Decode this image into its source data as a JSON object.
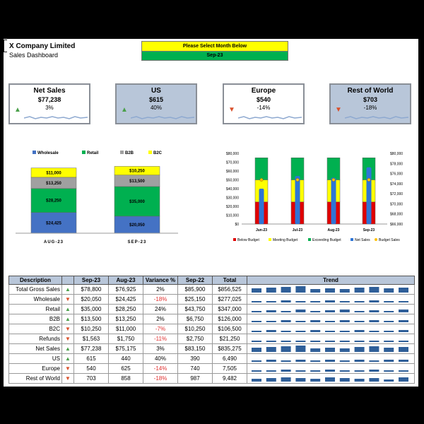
{
  "header": {
    "company": "X Company Limited",
    "subtitle": "Sales Dashboard",
    "month_prompt": "Please Select Month Below",
    "month_value": "Sep-23"
  },
  "kpis": [
    {
      "title": "Net Sales",
      "value": "$77,238",
      "pct": "3%",
      "trend": "up",
      "style": "white"
    },
    {
      "title": "US",
      "value": "$615",
      "pct": "40%",
      "trend": "up",
      "style": "blue"
    },
    {
      "title": "Europe",
      "value": "$540",
      "pct": "-14%",
      "trend": "down",
      "style": "white"
    },
    {
      "title": "Rest of World",
      "value": "$703",
      "pct": "-18%",
      "trend": "down",
      "style": "blue"
    }
  ],
  "chart_data": [
    {
      "type": "bar",
      "stacked": true,
      "categories": [
        "AUG-23",
        "SEP-23"
      ],
      "series": [
        {
          "name": "Wholesale",
          "color": "#4472c4",
          "values": [
            24425,
            20050
          ],
          "labels": [
            "$24,425",
            "$20,050"
          ]
        },
        {
          "name": "Retail",
          "color": "#00b050",
          "values": [
            28250,
            35000
          ],
          "labels": [
            "$28,250",
            "$35,000"
          ]
        },
        {
          "name": "B2B",
          "color": "#a0a0a0",
          "values": [
            13250,
            13500
          ],
          "labels": [
            "$13,250",
            "$13,500"
          ]
        },
        {
          "name": "B2C",
          "color": "#ffff00",
          "values": [
            11000,
            10250
          ],
          "labels": [
            "$11,000",
            "$10,250"
          ]
        }
      ],
      "legend_position": "top"
    },
    {
      "type": "bar",
      "categories": [
        "Jun-23",
        "Jul-23",
        "Aug-23",
        "Sep-23"
      ],
      "bands": [
        {
          "name": "Below Budget",
          "color": "#e00000",
          "values": [
            25000,
            25000,
            25000,
            25000
          ]
        },
        {
          "name": "Meeting Budget",
          "color": "#ffff00",
          "values": [
            25000,
            25000,
            25000,
            25000
          ]
        },
        {
          "name": "Exceeding Budget",
          "color": "#00b050",
          "values": [
            25000,
            25000,
            25000,
            25000
          ]
        }
      ],
      "net_sales": {
        "name": "Net Sales",
        "color": "#2e75d6",
        "values": [
          73000,
          75500,
          75175,
          77238
        ]
      },
      "budget_sales": {
        "name": "Budget Sales",
        "color": "#ffc000",
        "values": [
          50000,
          50000,
          50000,
          50000
        ]
      },
      "y_left": {
        "ticks": [
          "$80,000",
          "$70,000",
          "$60,000",
          "$50,000",
          "$40,000",
          "$30,000",
          "$20,000",
          "$10,000",
          "$0"
        ],
        "max": 80000
      },
      "y_right": {
        "ticks": [
          "$80,000",
          "$78,000",
          "$76,000",
          "$74,000",
          "$72,000",
          "$70,000",
          "$68,000",
          "$66,000"
        ],
        "min": 66000,
        "max": 80000
      },
      "legend_position": "bottom"
    }
  ],
  "table": {
    "headers": [
      "Description",
      "",
      "Sep-23",
      "Aug-23",
      "Variance %",
      "Sep-22",
      "Total",
      "Trend"
    ],
    "rows": [
      {
        "d": "Total Gross Sales",
        "t": "up",
        "a": "$78,800",
        "b": "$76,925",
        "v": "2%",
        "c": "$85,900",
        "tot": "$856,525",
        "trend": [
          0.6,
          0.7,
          0.8,
          0.9,
          0.5,
          0.6,
          0.5,
          0.7,
          0.8,
          0.6,
          0.7
        ]
      },
      {
        "d": "Wholesale",
        "t": "down",
        "a": "$20,050",
        "b": "$24,425",
        "v": "-18%",
        "c": "$25,150",
        "tot": "$277,025",
        "trend": [
          0.2,
          0.2,
          0.3,
          0.2,
          0.2,
          0.3,
          0.2,
          0.2,
          0.3,
          0.2,
          0.2
        ]
      },
      {
        "d": "Retail",
        "t": "up",
        "a": "$35,000",
        "b": "$28,250",
        "v": "24%",
        "c": "$43,750",
        "tot": "$347,000",
        "trend": [
          0.2,
          0.3,
          0.2,
          0.4,
          0.2,
          0.3,
          0.4,
          0.2,
          0.3,
          0.2,
          0.4
        ]
      },
      {
        "d": "B2B",
        "t": "up",
        "a": "$13,500",
        "b": "$13,250",
        "v": "2%",
        "c": "$6,750",
        "tot": "$126,000",
        "trend": [
          0.2,
          0.2,
          0.3,
          0.2,
          0.3,
          0.2,
          0.3,
          0.2,
          0.3,
          0.2,
          0.3
        ]
      },
      {
        "d": "B2C",
        "t": "down",
        "a": "$10,250",
        "b": "$11,000",
        "v": "-7%",
        "c": "$10,250",
        "tot": "$106,500",
        "trend": [
          0.2,
          0.3,
          0.2,
          0.2,
          0.3,
          0.2,
          0.2,
          0.3,
          0.2,
          0.2,
          0.3
        ]
      },
      {
        "d": "Refunds",
        "t": "down",
        "a": "$1,563",
        "b": "$1,750",
        "v": "-11%",
        "c": "$2,750",
        "tot": "$21,250",
        "trend": [
          0.2,
          0.2,
          0.2,
          0.2,
          0.2,
          0.2,
          0.2,
          0.2,
          0.2,
          0.2,
          0.2
        ]
      },
      {
        "d": "Net Sales",
        "t": "up",
        "a": "$77,238",
        "b": "$75,175",
        "v": "3%",
        "c": "$83,150",
        "tot": "$835,275",
        "trend": [
          0.6,
          0.7,
          0.8,
          0.9,
          0.5,
          0.6,
          0.5,
          0.7,
          0.8,
          0.6,
          0.7
        ]
      },
      {
        "d": "US",
        "t": "up",
        "a": "615",
        "b": "440",
        "v": "40%",
        "c": "390",
        "tot": "6,490",
        "trend": [
          0.2,
          0.3,
          0.2,
          0.3,
          0.2,
          0.3,
          0.2,
          0.3,
          0.2,
          0.3,
          0.3
        ]
      },
      {
        "d": "Europe",
        "t": "down",
        "a": "540",
        "b": "625",
        "v": "-14%",
        "c": "740",
        "tot": "7,505",
        "trend": [
          0.2,
          0.2,
          0.3,
          0.2,
          0.2,
          0.3,
          0.2,
          0.2,
          0.3,
          0.2,
          0.2
        ]
      },
      {
        "d": "Rest of World",
        "t": "down",
        "a": "703",
        "b": "858",
        "v": "-18%",
        "c": "987",
        "tot": "9,482",
        "trend": [
          0.4,
          0.5,
          0.6,
          0.5,
          0.4,
          0.6,
          0.5,
          0.4,
          0.5,
          0.3,
          0.6
        ]
      }
    ]
  }
}
